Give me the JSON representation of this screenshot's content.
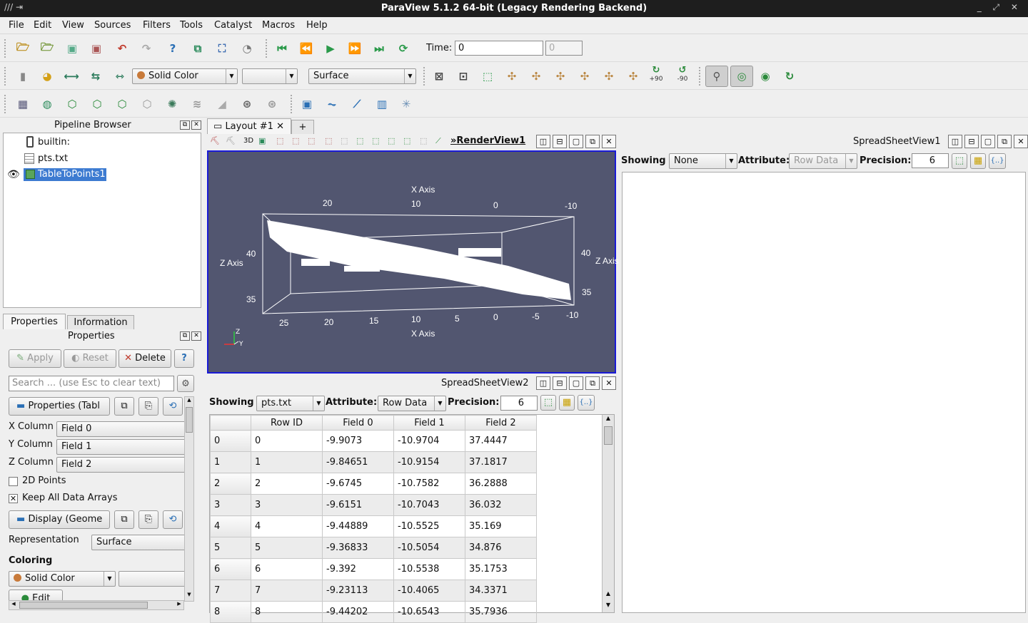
{
  "window": {
    "title": "ParaView 5.1.2 64-bit (Legacy Rendering Backend)"
  },
  "menu": [
    "File",
    "Edit",
    "View",
    "Sources",
    "Filters",
    "Tools",
    "Catalyst",
    "Macros",
    "Help"
  ],
  "toolbar": {
    "time_label": "Time:",
    "time_value": "0",
    "time_step": "0",
    "color_combo": "Solid Color",
    "repr_combo": "Surface",
    "rot_plus": "+90",
    "rot_minus": "-90"
  },
  "pipeline": {
    "title": "Pipeline Browser",
    "items": [
      "builtin:",
      "pts.txt",
      "TableToPoints1"
    ]
  },
  "props": {
    "tabs": [
      "Properties",
      "Information"
    ],
    "title": "Properties",
    "apply": "Apply",
    "reset": "Reset",
    "delete": "Delete",
    "help": "?",
    "search_placeholder": "Search ... (use Esc to clear text)",
    "section1": "Properties (Tabl",
    "x_label": "X Column",
    "x_value": "Field 0",
    "y_label": "Y Column",
    "y_value": "Field 1",
    "z_label": "Z Column",
    "z_value": "Field 2",
    "points2d": "2D Points",
    "keep_arrays": "Keep All Data Arrays",
    "section2": "Display (Geome",
    "repr_label": "Representation",
    "repr_value": "Surface",
    "coloring": "Coloring",
    "color_value": "Solid Color",
    "edit": "Edit"
  },
  "layout": {
    "tab": "Layout #1",
    "add": "+"
  },
  "render": {
    "name": "RenderView1",
    "toggle_3d": "3D",
    "top_axis": "X Axis",
    "bottom_axis": "X Axis",
    "left_axis": "Z Axis",
    "right_axis": "Z Axis",
    "top_ticks": [
      "20",
      "10",
      "0",
      "-10"
    ],
    "bottom_ticks": [
      "25",
      "20",
      "15",
      "10",
      "5",
      "0",
      "-5",
      "-10"
    ],
    "left_ticks": [
      "40",
      "35"
    ],
    "right_ticks": [
      "40",
      "35"
    ],
    "orient_z": "Z",
    "orient_y": "Y"
  },
  "ss1": {
    "name": "SpreadSheetView1",
    "showing_label": "Showing",
    "showing_value": "None",
    "attr_label": "Attribute:",
    "attr_value": "Row Data",
    "prec_label": "Precision:",
    "prec_value": "6"
  },
  "ss2": {
    "name": "SpreadSheetView2",
    "showing_label": "Showing",
    "showing_value": "pts.txt",
    "attr_label": "Attribute:",
    "attr_value": "Row Data",
    "prec_label": "Precision:",
    "prec_value": "6",
    "columns": [
      "Row ID",
      "Field 0",
      "Field 1",
      "Field 2"
    ],
    "rows": [
      [
        "0",
        "0",
        "-9.9073",
        "-10.9704",
        "37.4447"
      ],
      [
        "1",
        "1",
        "-9.84651",
        "-10.9154",
        "37.1817"
      ],
      [
        "2",
        "2",
        "-9.6745",
        "-10.7582",
        "36.2888"
      ],
      [
        "3",
        "3",
        "-9.6151",
        "-10.7043",
        "36.032"
      ],
      [
        "4",
        "4",
        "-9.44889",
        "-10.5525",
        "35.169"
      ],
      [
        "5",
        "5",
        "-9.36833",
        "-10.5054",
        "34.876"
      ],
      [
        "6",
        "6",
        "-9.392",
        "-10.5538",
        "35.1753"
      ],
      [
        "7",
        "7",
        "-9.23113",
        "-10.4065",
        "34.3371"
      ],
      [
        "8",
        "8",
        "-9.44202",
        "-10.6543",
        "35.7936"
      ]
    ]
  }
}
